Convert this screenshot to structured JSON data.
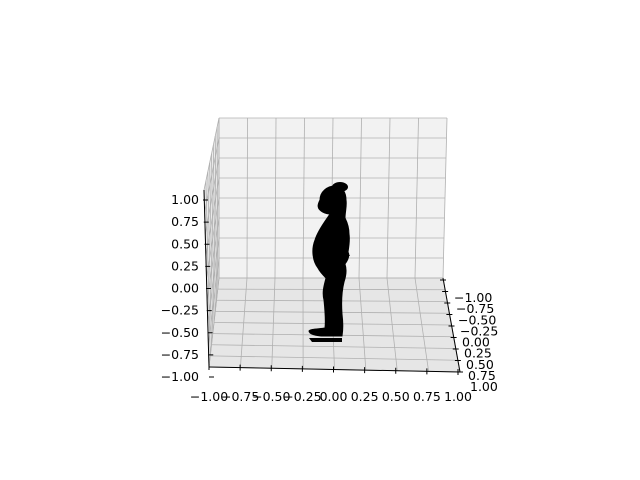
{
  "chart_data": {
    "type": "scatter",
    "projection": "3d",
    "title": "",
    "xlabel": "",
    "ylabel": "",
    "zlabel": "",
    "xlim": [
      -1.0,
      1.0
    ],
    "ylim": [
      -1.0,
      1.0
    ],
    "zlim": [
      -1.0,
      1.0
    ],
    "grid": true,
    "pane_color": "#f2f2f2",
    "grid_color": "#b0b0b0",
    "marker_color": "#000000",
    "x_tick_labels": [
      "−1.00",
      "−0.75",
      "−0.50",
      "−0.25",
      "0.00",
      "0.25",
      "0.50",
      "0.75",
      "1.00"
    ],
    "y_tick_labels": [
      "−1.00",
      "−0.75",
      "−0.50",
      "−0.25",
      "0.00",
      "0.25",
      "0.50",
      "0.75",
      "1.00"
    ],
    "z_tick_labels": [
      "−1.00",
      "−0.75",
      "−0.50",
      "−0.25",
      "0.00",
      "0.25",
      "0.50",
      "0.75",
      "1.00"
    ],
    "series": [
      {
        "points_description": "dense point cloud of a standing human figure in side profile",
        "color": "#000000"
      }
    ]
  }
}
